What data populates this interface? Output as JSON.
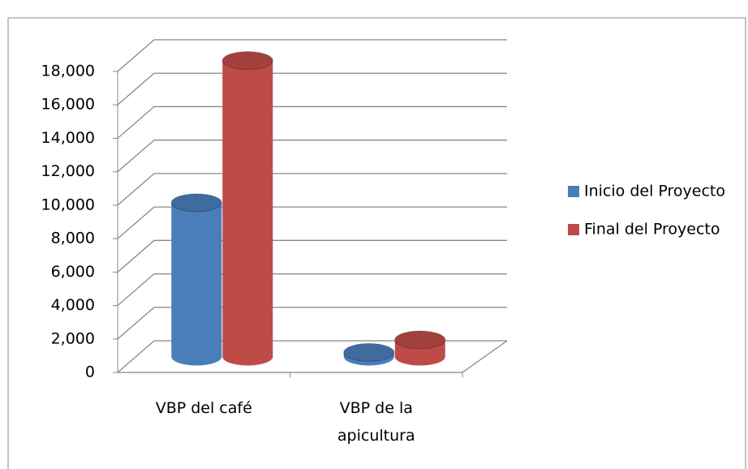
{
  "chart_data": {
    "type": "bar3d",
    "categories": [
      "VBP del café",
      "VBP de la apicultura"
    ],
    "series": [
      {
        "name": "Inicio del Proyecto",
        "color": "#4a7ebb",
        "values": [
          9200,
          250
        ]
      },
      {
        "name": "Final del Proyecto",
        "color": "#be4b48",
        "values": [
          17700,
          1000
        ]
      }
    ],
    "ylim": [
      0,
      18000
    ],
    "yticks": [
      0,
      {
        "value": 2000,
        "label": "2,000"
      },
      {
        "value": 4000,
        "label": "4,000"
      },
      {
        "value": 6000,
        "label": "6,000"
      },
      {
        "value": 8000,
        "label": "8,000"
      },
      {
        "value": 10000,
        "label": "10,000"
      },
      {
        "value": 12000,
        "label": "12,000"
      },
      {
        "value": 14000,
        "label": "14,000"
      },
      {
        "value": 16000,
        "label": "16,000"
      },
      {
        "value": 18000,
        "label": "18,000"
      }
    ],
    "grid": true,
    "legend": "right"
  }
}
